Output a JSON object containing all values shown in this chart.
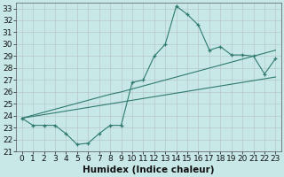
{
  "xlabel": "Humidex (Indice chaleur)",
  "x_values": [
    0,
    1,
    2,
    3,
    4,
    5,
    6,
    7,
    8,
    9,
    10,
    11,
    12,
    13,
    14,
    15,
    16,
    17,
    18,
    19,
    20,
    21,
    22,
    23
  ],
  "y_main": [
    23.8,
    23.2,
    23.2,
    23.2,
    22.5,
    21.6,
    21.7,
    22.5,
    23.2,
    23.2,
    26.8,
    27.0,
    29.0,
    30.0,
    33.2,
    32.5,
    31.6,
    29.5,
    29.8,
    29.1,
    29.1,
    29.0,
    27.5,
    28.8
  ],
  "y_lin1": [
    23.8,
    24.05,
    24.3,
    24.55,
    24.8,
    25.05,
    25.3,
    25.55,
    25.8,
    26.0,
    26.25,
    26.5,
    26.75,
    27.0,
    27.25,
    27.5,
    27.75,
    28.0,
    28.25,
    28.5,
    28.75,
    29.0,
    29.25,
    29.5
  ],
  "y_lin2": [
    23.8,
    23.95,
    24.1,
    24.25,
    24.4,
    24.55,
    24.7,
    24.85,
    25.0,
    25.15,
    25.3,
    25.45,
    25.6,
    25.75,
    25.9,
    26.05,
    26.2,
    26.35,
    26.5,
    26.65,
    26.8,
    26.95,
    27.1,
    27.25
  ],
  "ylim": [
    21,
    33.5
  ],
  "yticks": [
    21,
    22,
    23,
    24,
    25,
    26,
    27,
    28,
    29,
    30,
    31,
    32,
    33
  ],
  "xlim": [
    -0.5,
    23.5
  ],
  "line_color": "#2e7b6e",
  "bg_color": "#c8e8e8",
  "grid_color": "#b8c8c8",
  "tick_fontsize": 6.5,
  "label_fontsize": 7.5
}
